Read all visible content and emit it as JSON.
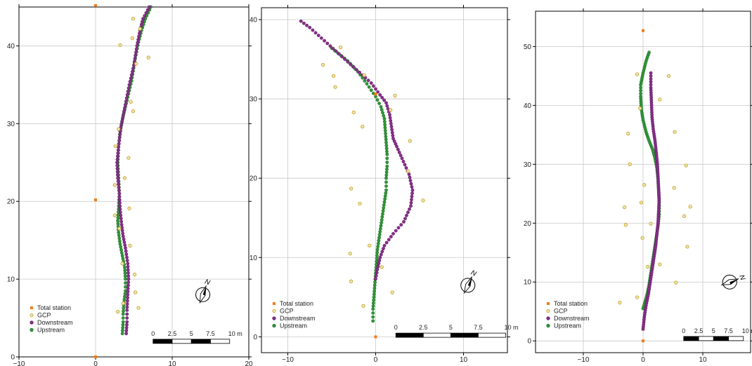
{
  "colors": {
    "total_station": "#f07c1b",
    "gcp_fill": "#f2e6a6",
    "gcp_stroke": "#c7a63b",
    "downstream": "#8b2e8e",
    "upstream": "#2f9a37",
    "grid": "#c8c8c8",
    "frame": "#000000"
  },
  "chart_data": [
    {
      "type": "scatter",
      "xlim": [
        -10,
        20
      ],
      "ylim": [
        0,
        45
      ],
      "x_ticks": [
        -10,
        0,
        10,
        20
      ],
      "y_ticks": [
        0,
        10,
        20,
        30,
        40
      ],
      "x_tick_labels": [
        "−10",
        "0",
        "10",
        "20"
      ],
      "y_tick_labels": [
        "0",
        "10",
        "20",
        "30",
        "40"
      ],
      "grid": true,
      "legend": {
        "position": "bottom-left",
        "entries": [
          {
            "label": "Total station",
            "series": "total_station"
          },
          {
            "label": "GCP",
            "series": "gcp"
          },
          {
            "label": "Downstream",
            "series": "downstream"
          },
          {
            "label": "Upstream",
            "series": "upstream"
          }
        ]
      },
      "north_arrow": {
        "label": "N",
        "rotation": 20,
        "x": 14,
        "y": 8
      },
      "scale_bar": {
        "labels": [
          "0",
          "2.5",
          "5",
          "7.5",
          "10 m"
        ],
        "length": 10,
        "x": 7.5,
        "y": 2
      },
      "total_station": [
        [
          0,
          45.2
        ],
        [
          0,
          20.2
        ],
        [
          0,
          0
        ]
      ],
      "gcp": [
        [
          3.2,
          40.1
        ],
        [
          4.8,
          41
        ],
        [
          5.3,
          37.7
        ],
        [
          4.6,
          32.8
        ],
        [
          4.9,
          31.6
        ],
        [
          3,
          29.3
        ],
        [
          2.6,
          27.1
        ],
        [
          4.3,
          25.6
        ],
        [
          3.8,
          23
        ],
        [
          2.5,
          22.1
        ],
        [
          4.4,
          19.1
        ],
        [
          2.5,
          18.2
        ],
        [
          3.1,
          16.5
        ],
        [
          4.5,
          14.3
        ],
        [
          3.5,
          12
        ],
        [
          5.1,
          10.6
        ],
        [
          5.2,
          8.3
        ],
        [
          3.6,
          6.9
        ],
        [
          5.6,
          6.3
        ],
        [
          2.9,
          5.8
        ],
        [
          6.9,
          38.5
        ],
        [
          5.8,
          42.2
        ],
        [
          4.9,
          43.5
        ]
      ],
      "downstream": [
        [
          7,
          45
        ],
        [
          6.2,
          43.5
        ],
        [
          5.8,
          42
        ],
        [
          5.4,
          40
        ],
        [
          5,
          37.5
        ],
        [
          4.4,
          35
        ],
        [
          3.8,
          32
        ],
        [
          3.3,
          29.5
        ],
        [
          3,
          27
        ],
        [
          2.8,
          25
        ],
        [
          2.9,
          23
        ],
        [
          3.1,
          21
        ],
        [
          3.2,
          19
        ],
        [
          3.4,
          17
        ],
        [
          3.6,
          15.5
        ],
        [
          3.9,
          14
        ],
        [
          4.2,
          12
        ],
        [
          4.3,
          10
        ],
        [
          4.2,
          8
        ],
        [
          4.1,
          6
        ],
        [
          4.1,
          4.5
        ],
        [
          4,
          3
        ]
      ],
      "upstream": [
        [
          7.2,
          45
        ],
        [
          6.5,
          43.5
        ],
        [
          6,
          42
        ],
        [
          5.6,
          40.5
        ],
        [
          5.1,
          38
        ],
        [
          4.7,
          35.5
        ],
        [
          4.1,
          33
        ],
        [
          3.6,
          31
        ],
        [
          3.2,
          29
        ],
        [
          3,
          27
        ],
        [
          2.9,
          25
        ],
        [
          3,
          23
        ],
        [
          3.1,
          21
        ],
        [
          3,
          19
        ],
        [
          2.9,
          17.5
        ],
        [
          3,
          16
        ],
        [
          3.2,
          14.5
        ],
        [
          3.5,
          13
        ],
        [
          3.8,
          11.5
        ],
        [
          3.9,
          10
        ],
        [
          3.9,
          8.5
        ],
        [
          3.7,
          7
        ],
        [
          3.6,
          5.5
        ],
        [
          3.6,
          4.5
        ],
        [
          3.5,
          3
        ]
      ]
    },
    {
      "type": "scatter",
      "xlim": [
        -13,
        15
      ],
      "ylim": [
        -2,
        41.5
      ],
      "x_ticks": [
        -10,
        0,
        10
      ],
      "y_ticks": [
        0,
        10,
        20,
        30,
        40
      ],
      "x_tick_labels": [
        "−10",
        "0",
        "10"
      ],
      "y_tick_labels": [
        "0",
        "10",
        "20",
        "30",
        "40"
      ],
      "grid": true,
      "legend": {
        "position": "bottom-left",
        "entries": [
          {
            "label": "Total station",
            "series": "total_station"
          },
          {
            "label": "GCP",
            "series": "gcp"
          },
          {
            "label": "Downstream",
            "series": "downstream"
          },
          {
            "label": "Upstream",
            "series": "upstream"
          }
        ]
      },
      "north_arrow": {
        "label": "N",
        "rotation": 25,
        "x": 10.5,
        "y": 6.5
      },
      "scale_bar": {
        "labels": [
          "0",
          "2.5",
          "5",
          "7.5",
          "10 m"
        ],
        "length": 12.5,
        "x": 2.3,
        "y": 0.2
      },
      "total_station": [
        [
          0,
          30.6
        ],
        [
          0,
          0
        ]
      ],
      "gcp": [
        [
          -6,
          34.3
        ],
        [
          -4,
          36.5
        ],
        [
          -4.8,
          32.9
        ],
        [
          -4.6,
          31.5
        ],
        [
          -1.3,
          33
        ],
        [
          2.2,
          30.4
        ],
        [
          1.7,
          28.6
        ],
        [
          -2.5,
          28.3
        ],
        [
          -1.5,
          26.5
        ],
        [
          3.9,
          24.7
        ],
        [
          3.7,
          20.9
        ],
        [
          -2.8,
          18.7
        ],
        [
          -1.8,
          16.8
        ],
        [
          5.4,
          17.2
        ],
        [
          -0.7,
          11.5
        ],
        [
          -2.9,
          10.5
        ],
        [
          0.7,
          8.8
        ],
        [
          -2.8,
          7
        ],
        [
          1.9,
          5.6
        ],
        [
          -1.4,
          3.9
        ]
      ],
      "downstream": [
        [
          -8.5,
          39.8
        ],
        [
          -7.5,
          39
        ],
        [
          -6.5,
          38
        ],
        [
          -5.5,
          37
        ],
        [
          -4.5,
          36
        ],
        [
          -3.5,
          35
        ],
        [
          -2.5,
          34
        ],
        [
          -1.5,
          33
        ],
        [
          -0.5,
          32
        ],
        [
          0.5,
          30.5
        ],
        [
          1.2,
          29.5
        ],
        [
          1.6,
          28
        ],
        [
          1.8,
          26.5
        ],
        [
          2,
          25
        ],
        [
          2.4,
          24
        ],
        [
          3,
          22.5
        ],
        [
          3.8,
          20.5
        ],
        [
          4.2,
          18.5
        ],
        [
          4,
          16.5
        ],
        [
          3.2,
          14.5
        ],
        [
          2,
          13
        ],
        [
          1,
          11.5
        ],
        [
          0.5,
          10
        ],
        [
          0.2,
          8.5
        ],
        [
          0,
          7.3
        ]
      ],
      "upstream": [
        [
          -5,
          36.4
        ],
        [
          -3.2,
          34.8
        ],
        [
          -2,
          33.4
        ],
        [
          -1,
          31.9
        ],
        [
          0,
          30.3
        ],
        [
          0.6,
          29
        ],
        [
          1,
          27.5
        ],
        [
          1.1,
          26
        ],
        [
          1.2,
          24.5
        ],
        [
          1.3,
          23
        ],
        [
          1.3,
          21.5
        ],
        [
          1.2,
          20
        ],
        [
          1.2,
          18.5
        ],
        [
          1,
          17
        ],
        [
          0.8,
          15.5
        ],
        [
          0.6,
          14
        ],
        [
          0.4,
          12.5
        ],
        [
          0.2,
          11
        ],
        [
          0.1,
          9.5
        ],
        [
          0,
          8
        ],
        [
          -0.1,
          6.5
        ],
        [
          -0.2,
          5
        ],
        [
          -0.3,
          3.5
        ],
        [
          -0.3,
          2
        ]
      ]
    },
    {
      "type": "scatter",
      "xlim": [
        -18,
        18
      ],
      "ylim": [
        -2,
        56
      ],
      "x_ticks": [
        -10,
        0,
        10
      ],
      "y_ticks": [
        0,
        10,
        20,
        30,
        40,
        50
      ],
      "x_tick_labels": [
        "−10",
        "0",
        "10"
      ],
      "y_tick_labels": [
        "0",
        "10",
        "20",
        "30",
        "40",
        "50"
      ],
      "grid": true,
      "legend": {
        "position": "bottom-left",
        "entries": [
          {
            "label": "Total station",
            "series": "total_station"
          },
          {
            "label": "GCP",
            "series": "gcp"
          },
          {
            "label": "Downstream",
            "series": "downstream"
          },
          {
            "label": "Upstream",
            "series": "upstream"
          }
        ]
      },
      "north_arrow": {
        "label": "N",
        "rotation": 70,
        "x": 14.5,
        "y": 10
      },
      "scale_bar": {
        "labels": [
          "0",
          "2.5",
          "5",
          "7.5",
          "10 m"
        ],
        "length": 10,
        "x": 6.8,
        "y": 0.4
      },
      "total_station": [
        [
          0,
          52.7
        ],
        [
          0,
          0
        ]
      ],
      "gcp": [
        [
          -1,
          45.3
        ],
        [
          4.3,
          45
        ],
        [
          2.8,
          41
        ],
        [
          -0.5,
          39.5
        ],
        [
          -2.5,
          35.2
        ],
        [
          5.3,
          35.5
        ],
        [
          -2.2,
          30
        ],
        [
          7.2,
          29.8
        ],
        [
          0.2,
          26.5
        ],
        [
          5.2,
          26
        ],
        [
          -0.3,
          23.5
        ],
        [
          7.9,
          22.8
        ],
        [
          -3.1,
          22.7
        ],
        [
          6.9,
          21.2
        ],
        [
          -2.9,
          19.7
        ],
        [
          1.3,
          19.9
        ],
        [
          -0.1,
          17.5
        ],
        [
          7.4,
          16
        ],
        [
          0.8,
          12.6
        ],
        [
          2.8,
          13
        ],
        [
          -3.9,
          6.5
        ],
        [
          5.5,
          9.9
        ],
        [
          -1,
          7.4
        ]
      ],
      "downstream": [
        [
          1.3,
          45.5
        ],
        [
          1.3,
          43
        ],
        [
          1.4,
          40.5
        ],
        [
          1.5,
          38
        ],
        [
          1.7,
          36
        ],
        [
          2,
          34
        ],
        [
          2.2,
          32
        ],
        [
          2.4,
          30
        ],
        [
          2.5,
          28
        ],
        [
          2.6,
          26
        ],
        [
          2.7,
          24
        ],
        [
          2.6,
          22
        ],
        [
          2.5,
          20
        ],
        [
          2.3,
          18
        ],
        [
          2.1,
          16
        ],
        [
          1.8,
          14
        ],
        [
          1.5,
          12
        ],
        [
          1.2,
          10
        ],
        [
          0.9,
          8
        ],
        [
          0.5,
          6
        ],
        [
          0.2,
          4
        ],
        [
          0,
          2
        ]
      ],
      "upstream": [
        [
          1,
          49
        ],
        [
          0.5,
          47.5
        ],
        [
          0,
          45.5
        ],
        [
          -0.4,
          43.5
        ],
        [
          -0.4,
          41.5
        ],
        [
          -0.3,
          39.5
        ],
        [
          0,
          37.5
        ],
        [
          0.5,
          35.5
        ],
        [
          1,
          34
        ],
        [
          1.6,
          32.5
        ],
        [
          2,
          31
        ],
        [
          2.3,
          29.5
        ],
        [
          2.5,
          27.5
        ],
        [
          2.6,
          25.5
        ],
        [
          2.7,
          23.5
        ],
        [
          2.7,
          21.5
        ],
        [
          2.5,
          19.5
        ],
        [
          2.2,
          17.5
        ],
        [
          1.9,
          15.5
        ],
        [
          1.6,
          13.5
        ],
        [
          1.3,
          11.5
        ],
        [
          1,
          9.5
        ],
        [
          0.7,
          8
        ],
        [
          0.3,
          6.5
        ],
        [
          0,
          5.5
        ]
      ]
    }
  ]
}
